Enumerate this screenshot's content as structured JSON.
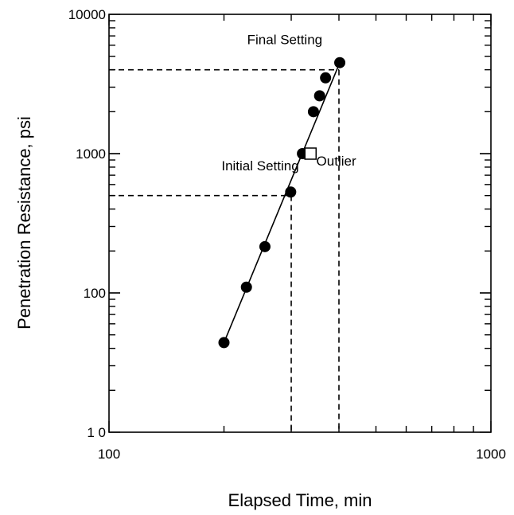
{
  "chart_data": {
    "type": "scatter",
    "xlabel": "Elapsed Time, min",
    "ylabel": "Penetration Resistance, psi",
    "xscale": "log",
    "yscale": "log",
    "xlim": [
      100,
      1000
    ],
    "ylim": [
      10,
      10000
    ],
    "x_tick_labels": [
      "100",
      "1000"
    ],
    "y_tick_labels": [
      "1 0",
      "100",
      "1000",
      "10000"
    ],
    "x_ticks": [
      100,
      1000
    ],
    "y_ticks": [
      10,
      100,
      1000,
      10000
    ],
    "grid": false,
    "series": [
      {
        "marker": "filled-circle",
        "x": [
          200,
          229,
          256,
          299,
          321,
          343,
          356,
          369,
          402
        ],
        "y": [
          44,
          110,
          215,
          530,
          1000,
          2000,
          2600,
          3500,
          4500
        ]
      },
      {
        "marker": "open-square",
        "x": [
          337
        ],
        "y": [
          1000
        ]
      }
    ],
    "fit_line": {
      "x": [
        200,
        402
      ],
      "y": [
        44,
        4500
      ]
    },
    "reference_lines": [
      {
        "label": "Initial Setting",
        "y": 500,
        "x": 300
      },
      {
        "label": "Final Setting",
        "y": 4000,
        "x": 400
      }
    ],
    "annotations": [
      {
        "text": "Final Setting",
        "x": 230,
        "y": 6100
      },
      {
        "text": "Initial Setting",
        "x": 197,
        "y": 760
      },
      {
        "text": "Outlier",
        "x": 349,
        "y": 820
      }
    ],
    "colors": {
      "ink": "#000000",
      "background": "#ffffff"
    }
  }
}
